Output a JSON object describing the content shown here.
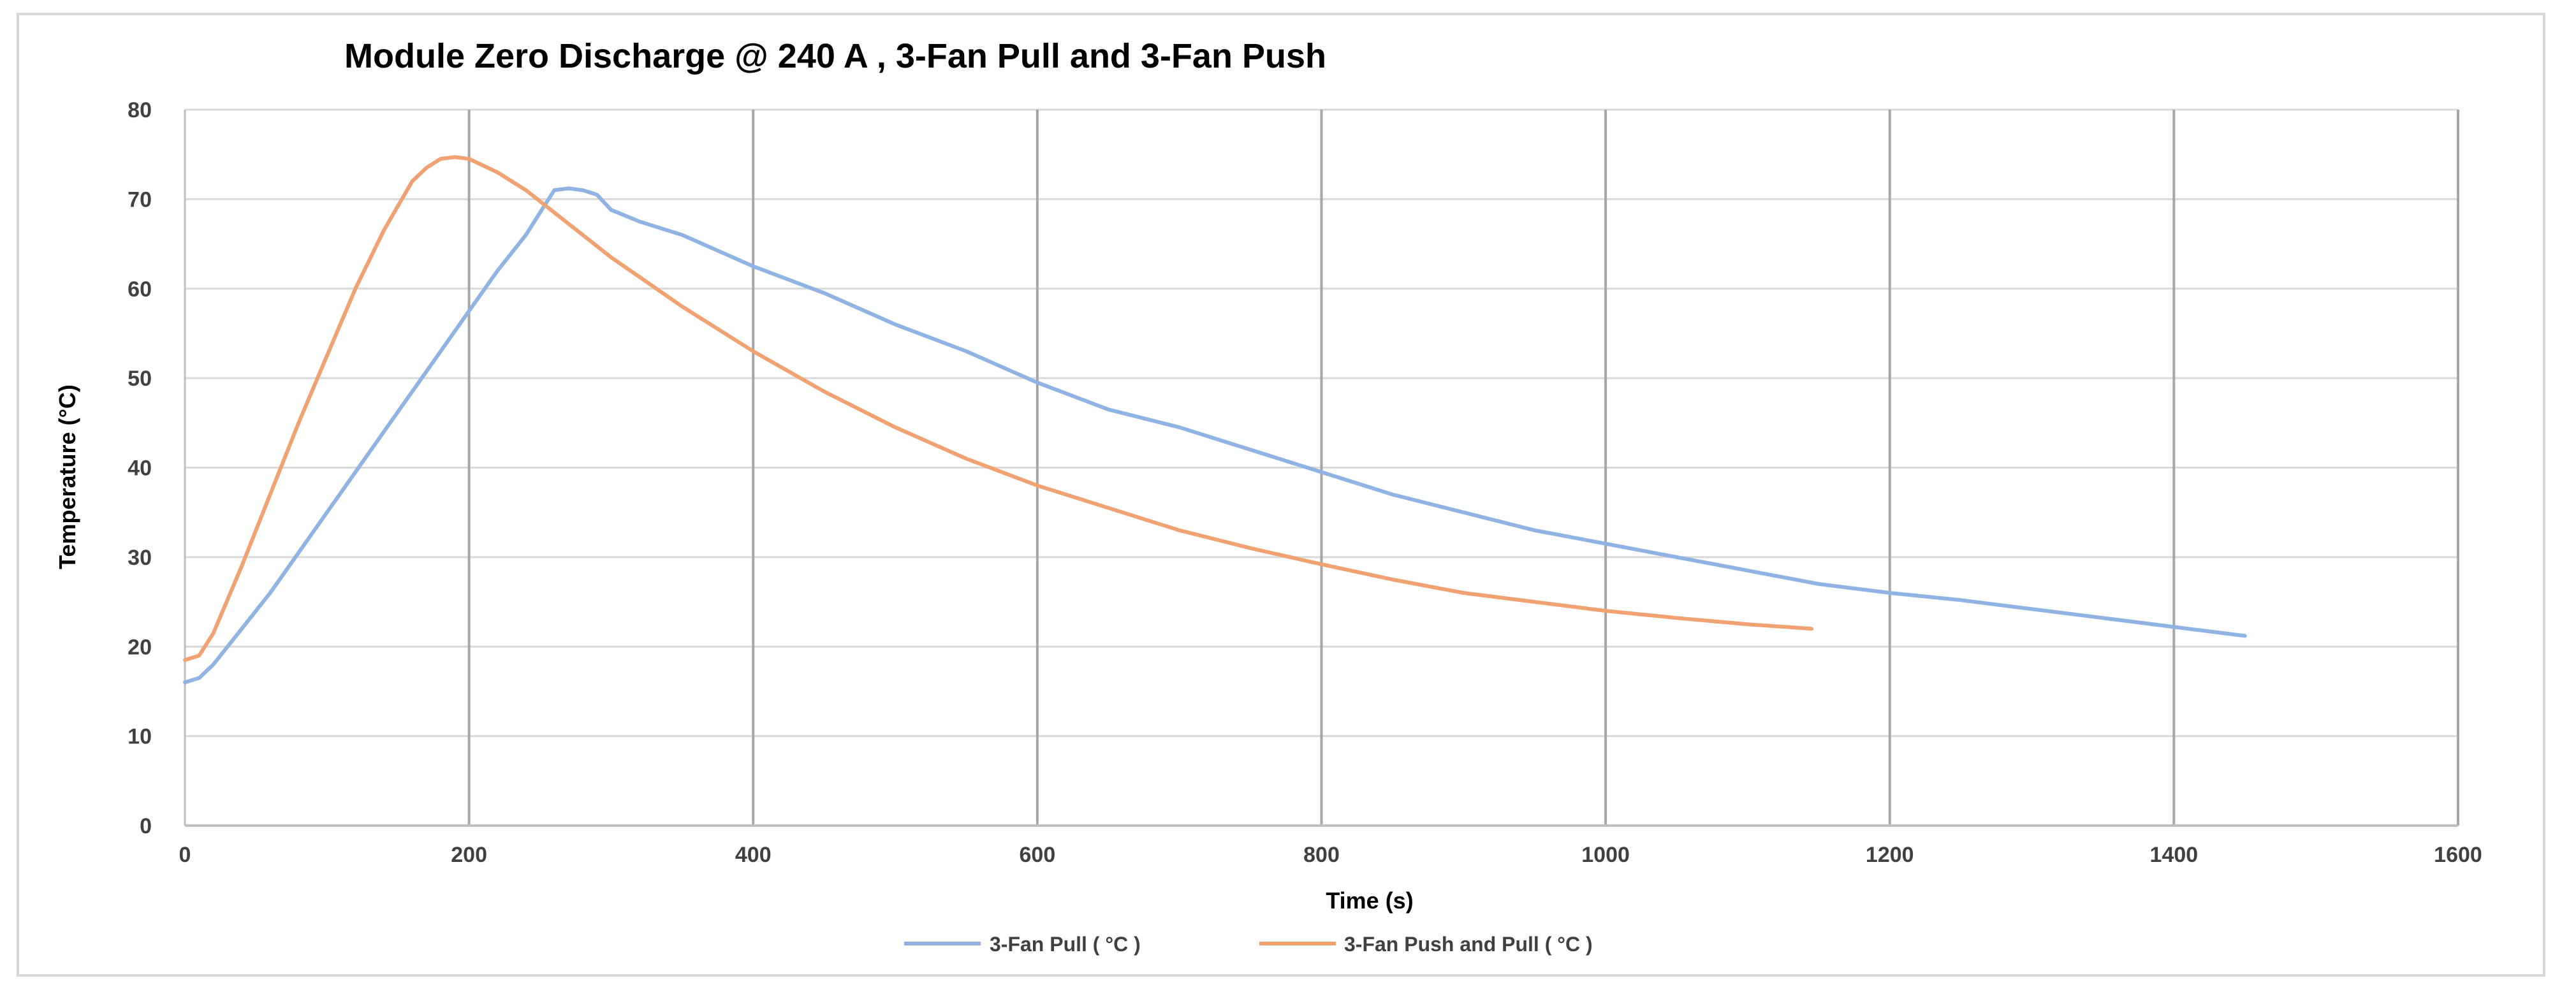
{
  "chart_data": {
    "type": "line",
    "title": "Module Zero Discharge @ 240 A , 3-Fan Pull and 3-Fan Push",
    "xlabel": "Time (s)",
    "ylabel": "Temperature (°C)",
    "xlim": [
      0,
      1600
    ],
    "ylim": [
      0,
      80
    ],
    "x_ticks": [
      0,
      200,
      400,
      600,
      800,
      1000,
      1200,
      1400,
      1600
    ],
    "y_ticks": [
      0,
      10,
      20,
      30,
      40,
      50,
      60,
      70,
      80
    ],
    "x_tick_labels": [
      "0",
      "200",
      "400",
      "600",
      "800",
      "1000",
      "1200",
      "1400",
      "1600"
    ],
    "y_tick_labels": [
      "0",
      "10",
      "20",
      "30",
      "40",
      "50",
      "60",
      "70",
      "80"
    ],
    "grid": "vertical-and-horizontal",
    "legend_position": "bottom",
    "series": [
      {
        "name": "3-Fan Pull ( °C )",
        "color": "#8fb4e3",
        "x": [
          0,
          10,
          20,
          40,
          60,
          80,
          100,
          120,
          140,
          160,
          180,
          200,
          220,
          240,
          250,
          260,
          270,
          280,
          290,
          300,
          320,
          350,
          400,
          450,
          500,
          550,
          600,
          650,
          700,
          750,
          800,
          850,
          900,
          950,
          1000,
          1050,
          1100,
          1150,
          1200,
          1250,
          1300,
          1350,
          1400,
          1450
        ],
        "values": [
          16,
          16.5,
          18,
          22,
          26,
          30.5,
          35,
          39.5,
          44,
          48.5,
          53,
          57.5,
          62,
          66,
          68.5,
          71,
          71.2,
          71,
          70.5,
          68.8,
          67.5,
          66,
          62.5,
          59.5,
          56,
          53,
          49.5,
          46.5,
          44.5,
          42,
          39.5,
          37,
          35,
          33,
          31.5,
          30,
          28.5,
          27,
          26,
          25.2,
          24.2,
          23.2,
          22.2,
          21.2
        ]
      },
      {
        "name": "3-Fan Push and Pull ( °C )",
        "color": "#f0a273",
        "x": [
          0,
          10,
          20,
          40,
          60,
          80,
          100,
          120,
          140,
          160,
          170,
          180,
          190,
          200,
          220,
          240,
          260,
          280,
          300,
          350,
          400,
          450,
          500,
          550,
          600,
          650,
          700,
          750,
          800,
          850,
          900,
          950,
          1000,
          1050,
          1100,
          1145
        ],
        "values": [
          18.5,
          19,
          21.5,
          29,
          37,
          45,
          52.5,
          60,
          66.5,
          72,
          73.5,
          74.5,
          74.7,
          74.5,
          73,
          71,
          68.5,
          66,
          63.5,
          58,
          53,
          48.5,
          44.5,
          41,
          38,
          35.5,
          33,
          31,
          29.2,
          27.5,
          26,
          25,
          24,
          23.2,
          22.5,
          22
        ]
      }
    ]
  }
}
